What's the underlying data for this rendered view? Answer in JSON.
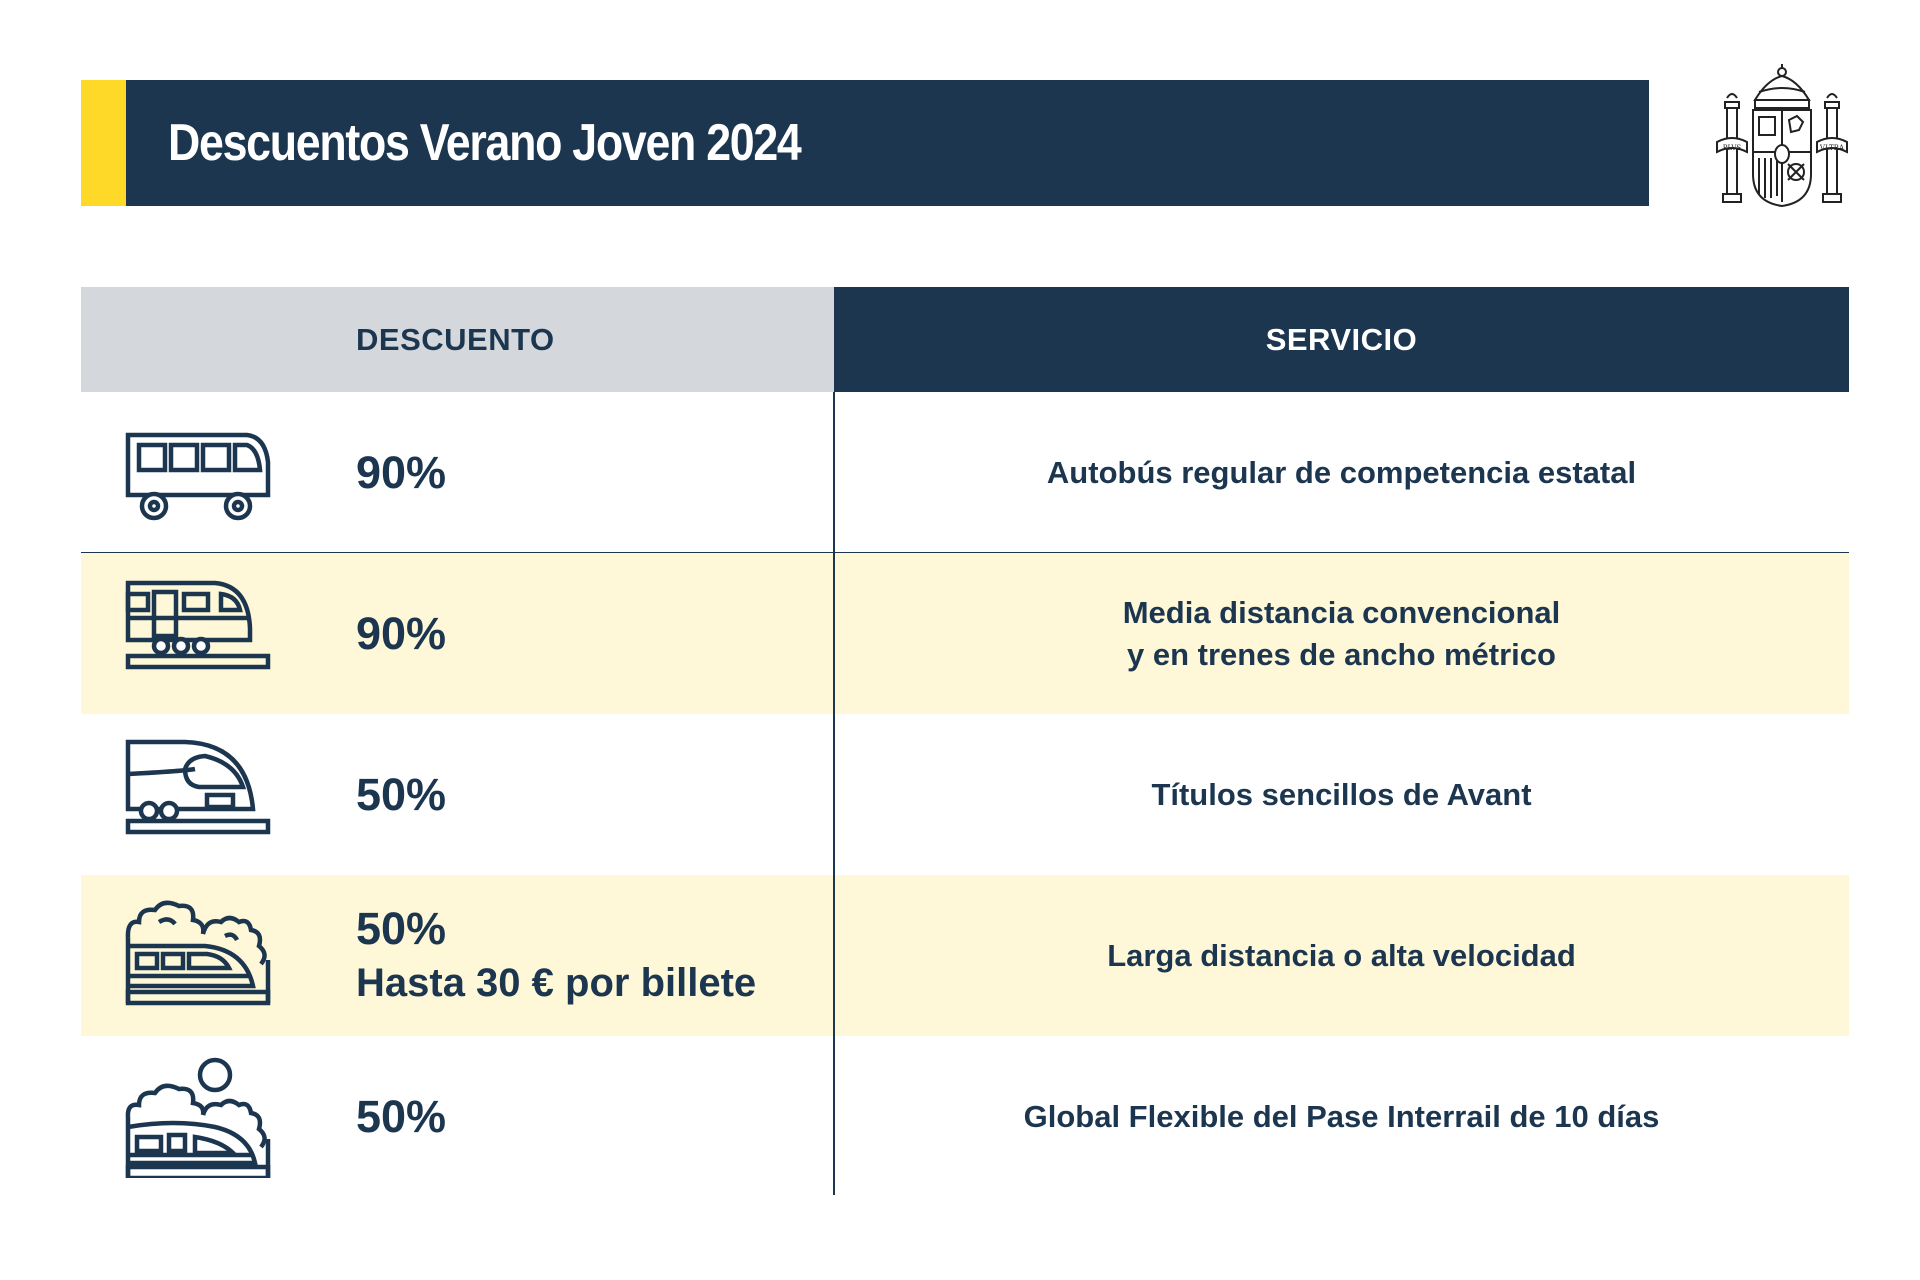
{
  "header": {
    "title": "Descuentos Verano Joven 2024",
    "accent_color": "#fed928",
    "background_color": "#1c3650"
  },
  "crest": {
    "name": "coat-of-arms-of-spain",
    "mottos": [
      "PLVS",
      "VLTRA"
    ]
  },
  "table": {
    "headers": {
      "discount": "DESCUENTO",
      "service": "SERVICIO"
    },
    "rows": [
      {
        "icon": "bus-icon",
        "discount": "90%",
        "discount_note": "",
        "service_lines": [
          "Autobús regular de competencia estatal",
          ""
        ]
      },
      {
        "icon": "regional-train-icon",
        "discount": "90%",
        "discount_note": "",
        "service_lines": [
          "Media distancia convencional",
          "y en trenes de ancho métrico"
        ]
      },
      {
        "icon": "high-speed-train-icon",
        "discount": "50%",
        "discount_note": "",
        "service_lines": [
          "Títulos sencillos de Avant",
          ""
        ]
      },
      {
        "icon": "long-distance-train-icon",
        "discount": "50%",
        "discount_note": "Hasta 30 € por billete",
        "service_lines": [
          "Larga distancia o alta velocidad",
          ""
        ]
      },
      {
        "icon": "interrail-train-icon",
        "discount": "50%",
        "discount_note": "",
        "service_lines": [
          "Global Flexible del Pase Interrail de 10 días",
          ""
        ]
      }
    ]
  },
  "colors": {
    "navy": "#1c3650",
    "row_highlight": "#fef8d8",
    "header_grey": "#d4d8dc"
  }
}
